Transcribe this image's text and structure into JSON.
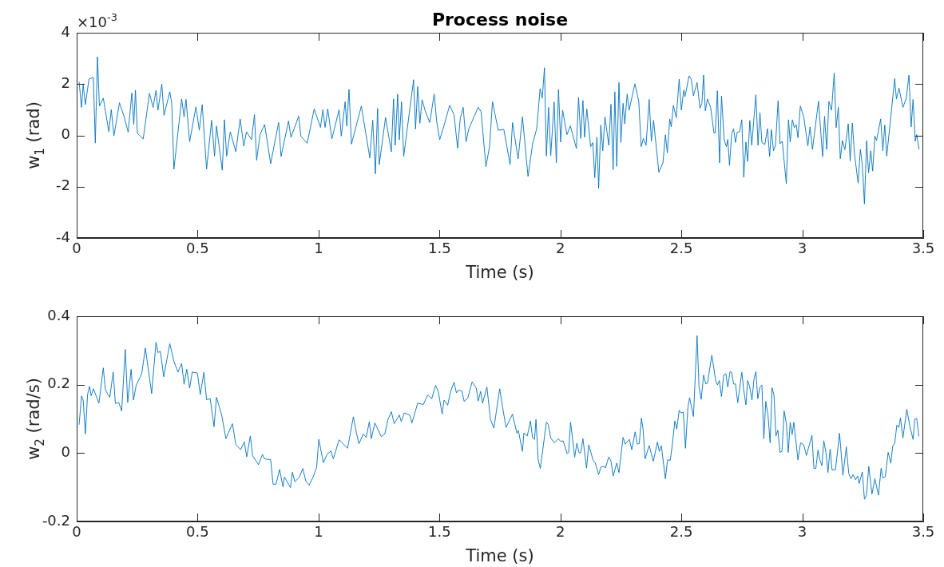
{
  "chart_data": [
    {
      "type": "line",
      "title": "Process noise",
      "xlabel": "Time (s)",
      "ylabel": "w$_{1}$ (rad)",
      "annotations": [
        "×10$^{-3}$"
      ],
      "color": "#0072bd",
      "xlim": [
        0,
        3.5
      ],
      "xticks": [
        0,
        0.5,
        1,
        1.5,
        2,
        2.5,
        3,
        3.5
      ],
      "ylim": [
        -4,
        4
      ],
      "yticks": [
        -4,
        -2,
        0,
        2,
        4
      ],
      "x": [
        0.01,
        0.02,
        0.027,
        0.036,
        0.051,
        0.069,
        0.077,
        0.086,
        0.094,
        0.11,
        0.133,
        0.143,
        0.154,
        0.177,
        0.196,
        0.213,
        0.228,
        0.236,
        0.243,
        0.251,
        0.275,
        0.301,
        0.316,
        0.328,
        0.336,
        0.352,
        0.361,
        0.385,
        0.393,
        0.402,
        0.434,
        0.444,
        0.452,
        0.467,
        0.493,
        0.507,
        0.519,
        0.537,
        0.558,
        0.57,
        0.578,
        0.602,
        0.611,
        0.62,
        0.635,
        0.658,
        0.676,
        0.691,
        0.702,
        0.723,
        0.735,
        0.744,
        0.758,
        0.777,
        0.802,
        0.835,
        0.845,
        0.876,
        0.886,
        0.918,
        0.927,
        0.953,
        0.982,
        1.008,
        1.018,
        1.027,
        1.038,
        1.055,
        1.085,
        1.094,
        1.11,
        1.117,
        1.126,
        1.136,
        1.177,
        1.212,
        1.224,
        1.235,
        1.244,
        1.251,
        1.277,
        1.301,
        1.31,
        1.317,
        1.327,
        1.334,
        1.343,
        1.352,
        1.369,
        1.393,
        1.401,
        1.41,
        1.419,
        1.428,
        1.442,
        1.46,
        1.478,
        1.489,
        1.501,
        1.519,
        1.542,
        1.56,
        1.575,
        1.586,
        1.598,
        1.61,
        1.621,
        1.66,
        1.672,
        1.692,
        1.707,
        1.719,
        1.743,
        1.766,
        1.792,
        1.802,
        1.825,
        1.843,
        1.866,
        1.885,
        1.902,
        1.916,
        1.925,
        1.934,
        1.942,
        1.951,
        1.96,
        1.974,
        1.983,
        1.992,
        2.001,
        2.009,
        2.027,
        2.041,
        2.066,
        2.075,
        2.084,
        2.093,
        2.1,
        2.109,
        2.125,
        2.134,
        2.142,
        2.151,
        2.158,
        2.167,
        2.175,
        2.184,
        2.2,
        2.209,
        2.218,
        2.225,
        2.233,
        2.242,
        2.25,
        2.259,
        2.266,
        2.276,
        2.284,
        2.308,
        2.324,
        2.334,
        2.343,
        2.354,
        2.367,
        2.376,
        2.385,
        2.407,
        2.424,
        2.434,
        2.442,
        2.452,
        2.458,
        2.467,
        2.479,
        2.491,
        2.5,
        2.51,
        2.515,
        2.532,
        2.541,
        2.55,
        2.565,
        2.577,
        2.585,
        2.592,
        2.599,
        2.608,
        2.621,
        2.635,
        2.64,
        2.649,
        2.658,
        2.666,
        2.677,
        2.686,
        2.692,
        2.699,
        2.708,
        2.716,
        2.724,
        2.731,
        2.741,
        2.75,
        2.758,
        2.767,
        2.774,
        2.783,
        2.791,
        2.808,
        2.817,
        2.825,
        2.833,
        2.845,
        2.856,
        2.865,
        2.872,
        2.881,
        2.889,
        2.9,
        2.908,
        2.917,
        2.934,
        2.943,
        2.95,
        2.959,
        2.967,
        2.975,
        2.982,
        2.992,
        3.006,
        3.023,
        3.032,
        3.042,
        3.067,
        3.084,
        3.092,
        3.101,
        3.11,
        3.121,
        3.132,
        3.14,
        3.149,
        3.157,
        3.166,
        3.176,
        3.19,
        3.198,
        3.207,
        3.216,
        3.231,
        3.24,
        3.248,
        3.257,
        3.266,
        3.274,
        3.283,
        3.291,
        3.3,
        3.307,
        3.324,
        3.333,
        3.341,
        3.349,
        3.363,
        3.382,
        3.389,
        3.4,
        3.416,
        3.43,
        3.441,
        3.45,
        3.458,
        3.467,
        3.473,
        3.483
      ],
      "values": [
        2.09,
        1.09,
        1.98,
        1.2,
        2.2,
        2.26,
        -0.3,
        3.06,
        1.14,
        1.45,
        0.14,
        1.01,
        -0.02,
        1.27,
        0.73,
        0.12,
        1.65,
        0.42,
        1.76,
        0.08,
        -0.14,
        1.64,
        1.09,
        1.75,
        0.98,
        2.0,
        0.78,
        1.7,
        1.25,
        -1.32,
        1.42,
        0.72,
        1.4,
        -0.25,
        1.11,
        0.2,
        1.2,
        -1.32,
        0.59,
        -0.81,
        0.36,
        -1.36,
        0.61,
        -0.81,
        0.14,
        -0.64,
        0.64,
        -0.42,
        0.14,
        -0.17,
        0.81,
        -0.97,
        0.03,
        0.42,
        -1.1,
        0.5,
        -0.82,
        0.56,
        -0.08,
        0.75,
        -0.03,
        -0.31,
        1.03,
        0.31,
        1.0,
        0.31,
        1.03,
        -0.14,
        1.0,
        -0.03,
        1.31,
        0.36,
        1.79,
        -0.34,
        1.14,
        -0.88,
        0.59,
        -1.5,
        1.05,
        -1.14,
        0.7,
        -0.64,
        1.42,
        -0.39,
        1.61,
        -0.17,
        1.31,
        -0.82,
        0.42,
        2.17,
        0.25,
        1.9,
        0.47,
        1.39,
        0.92,
        0.5,
        1.61,
        0.5,
        -0.17,
        0.39,
        1.17,
        0.81,
        -0.5,
        0.66,
        1.09,
        -0.25,
        0.25,
        1.1,
        0.92,
        -1.22,
        -0.44,
        1.31,
        0.2,
        0.23,
        -1.14,
        0.5,
        -0.92,
        0.72,
        -1.6,
        -0.33,
        0.26,
        1.82,
        1.45,
        2.64,
        -0.81,
        1.09,
        -0.79,
        1.3,
        -1.07,
        1.79,
        -0.26,
        0.98,
        0.03,
        0.37,
        -0.51,
        1.48,
        -0.12,
        1.36,
        -0.07,
        1.03,
        -0.44,
        -0.28,
        -1.65,
        -0.07,
        -2.07,
        0.4,
        -0.6,
        0.72,
        -0.39,
        1.21,
        -1.33,
        1.7,
        -1.21,
        2.06,
        -0.28,
        1.25,
        0.45,
        1.61,
        0.98,
        2.01,
        1.32,
        -0.44,
        -0.12,
        -0.39,
        1.4,
        -0.23,
        0.58,
        -1.44,
        -1.07,
        0.02,
        -0.68,
        0.64,
        0.33,
        1.17,
        0.69,
        2.19,
        0.98,
        1.77,
        1.51,
        2.32,
        2.19,
        1.54,
        2.06,
        1.06,
        1.25,
        2.35,
        0.96,
        1.42,
        1.09,
        0.09,
        0.09,
        1.74,
        -1.07,
        1.53,
        -0.17,
        -0.44,
        -0.16,
        -1.17,
        0.06,
        0.25,
        -0.28,
        0.12,
        0.14,
        0.61,
        -1.63,
        -0.26,
        -1.02,
        0.58,
        -0.39,
        1.58,
        -0.39,
        0.88,
        -0.28,
        -0.36,
        0.26,
        -0.83,
        0.22,
        -0.6,
        -0.39,
        1.35,
        -0.33,
        -0.23,
        -1.88,
        0.61,
        -0.26,
        0.61,
        0.3,
        0.42,
        -0.09,
        1.14,
        0.72,
        -0.41,
        0.33,
        -0.55,
        1.33,
        -0.83,
        0.74,
        -0.55,
        1.32,
        0.98,
        2.43,
        0.3,
        1.09,
        -0.91,
        -0.2,
        -0.56,
        0.45,
        -1.0,
        0.48,
        -0.75,
        -1.86,
        -0.55,
        -1.12,
        -2.67,
        -0.21,
        -1.46,
        -0.6,
        -1.39,
        -0.02,
        -0.2,
        0.64,
        -0.6,
        0.4,
        -0.81,
        0.45,
        2.21,
        1.42,
        1.84,
        1.09,
        1.45,
        2.35,
        0.33,
        1.4,
        -0.23,
        0.03,
        -0.55
      ]
    },
    {
      "type": "line",
      "xlabel": "Time (s)",
      "ylabel": "w$_{2}$ (rad/s)",
      "color": "#0072bd",
      "xlim": [
        0,
        3.5
      ],
      "xticks": [
        0,
        0.5,
        1,
        1.5,
        2,
        2.5,
        3,
        3.5
      ],
      "ylim": [
        -0.2,
        0.4
      ],
      "yticks": [
        -0.2,
        0,
        0.2,
        0.4
      ],
      "x": [
        0.01,
        0.02,
        0.027,
        0.036,
        0.045,
        0.053,
        0.06,
        0.069,
        0.092,
        0.11,
        0.119,
        0.137,
        0.151,
        0.16,
        0.174,
        0.186,
        0.201,
        0.211,
        0.225,
        0.235,
        0.246,
        0.269,
        0.284,
        0.31,
        0.328,
        0.336,
        0.346,
        0.36,
        0.385,
        0.402,
        0.419,
        0.434,
        0.444,
        0.455,
        0.467,
        0.478,
        0.499,
        0.511,
        0.526,
        0.537,
        0.552,
        0.568,
        0.578,
        0.599,
        0.617,
        0.644,
        0.658,
        0.678,
        0.693,
        0.703,
        0.718,
        0.727,
        0.752,
        0.768,
        0.777,
        0.802,
        0.812,
        0.824,
        0.839,
        0.853,
        0.859,
        0.884,
        0.892,
        0.902,
        0.921,
        0.935,
        0.947,
        0.961,
        0.977,
        0.992,
        1.001,
        1.02,
        1.035,
        1.051,
        1.061,
        1.085,
        1.12,
        1.144,
        1.157,
        1.167,
        1.185,
        1.197,
        1.21,
        1.218,
        1.233,
        1.259,
        1.274,
        1.287,
        1.301,
        1.313,
        1.334,
        1.342,
        1.354,
        1.377,
        1.386,
        1.41,
        1.433,
        1.452,
        1.468,
        1.484,
        1.495,
        1.511,
        1.519,
        1.534,
        1.546,
        1.56,
        1.57,
        1.578,
        1.593,
        1.602,
        1.617,
        1.635,
        1.652,
        1.66,
        1.67,
        1.678,
        1.696,
        1.711,
        1.725,
        1.749,
        1.761,
        1.775,
        1.802,
        1.82,
        1.826,
        1.843,
        1.849,
        1.863,
        1.876,
        1.885,
        1.893,
        1.899,
        1.908,
        1.917,
        1.942,
        1.95,
        1.96,
        1.975,
        1.991,
        2.001,
        2.011,
        2.028,
        2.034,
        2.042,
        2.059,
        2.068,
        2.077,
        2.084,
        2.093,
        2.108,
        2.117,
        2.135,
        2.144,
        2.158,
        2.167,
        2.181,
        2.186,
        2.2,
        2.209,
        2.218,
        2.233,
        2.242,
        2.259,
        2.268,
        2.285,
        2.295,
        2.309,
        2.318,
        2.326,
        2.335,
        2.342,
        2.35,
        2.367,
        2.384,
        2.401,
        2.409,
        2.417,
        2.434,
        2.443,
        2.454,
        2.463,
        2.473,
        2.481,
        2.491,
        2.499,
        2.508,
        2.517,
        2.527,
        2.534,
        2.55,
        2.565,
        2.573,
        2.582,
        2.592,
        2.601,
        2.608,
        2.626,
        2.642,
        2.649,
        2.657,
        2.666,
        2.675,
        2.684,
        2.692,
        2.701,
        2.708,
        2.716,
        2.724,
        2.733,
        2.75,
        2.758,
        2.767,
        2.774,
        2.782,
        2.792,
        2.8,
        2.808,
        2.816,
        2.825,
        2.833,
        2.841,
        2.849,
        2.858,
        2.867,
        2.875,
        2.883,
        2.891,
        2.899,
        2.908,
        2.916,
        2.925,
        2.934,
        2.942,
        2.95,
        2.958,
        2.965,
        2.982,
        2.993,
        3.006,
        3.017,
        3.031,
        3.04,
        3.048,
        3.056,
        3.065,
        3.073,
        3.081,
        3.089,
        3.098,
        3.106,
        3.115,
        3.123,
        3.137,
        3.154,
        3.168,
        3.182,
        3.192,
        3.201,
        3.21,
        3.22,
        3.229,
        3.235,
        3.248,
        3.257,
        3.265,
        3.275,
        3.288,
        3.3,
        3.315,
        3.326,
        3.333,
        3.343,
        3.355,
        3.366,
        3.374,
        3.382,
        3.391,
        3.399,
        3.406,
        3.416,
        3.432,
        3.445,
        3.458,
        3.465,
        3.473,
        3.482
      ],
      "values": [
        0.083,
        0.167,
        0.155,
        0.056,
        0.171,
        0.195,
        0.167,
        0.188,
        0.146,
        0.249,
        0.184,
        0.163,
        0.237,
        0.145,
        0.148,
        0.123,
        0.303,
        0.148,
        0.245,
        0.155,
        0.198,
        0.232,
        0.307,
        0.174,
        0.324,
        0.294,
        0.297,
        0.223,
        0.32,
        0.268,
        0.237,
        0.262,
        0.201,
        0.245,
        0.19,
        0.237,
        0.234,
        0.171,
        0.236,
        0.156,
        0.159,
        0.077,
        0.163,
        0.113,
        0.042,
        0.086,
        0.025,
        0.01,
        0.033,
        -0.011,
        0.05,
        -0.007,
        -0.034,
        -0.004,
        -0.017,
        -0.019,
        -0.091,
        -0.091,
        -0.048,
        -0.099,
        -0.07,
        -0.101,
        -0.056,
        -0.084,
        -0.07,
        -0.045,
        -0.081,
        -0.094,
        -0.071,
        -0.042,
        0.04,
        -0.028,
        -0.004,
        0.006,
        -0.017,
        0.039,
        0.014,
        0.106,
        0.058,
        0.027,
        0.056,
        0.046,
        0.092,
        0.042,
        0.088,
        0.048,
        0.056,
        0.098,
        0.121,
        0.086,
        0.111,
        0.092,
        0.117,
        0.111,
        0.088,
        0.146,
        0.142,
        0.17,
        0.159,
        0.198,
        0.18,
        0.114,
        0.155,
        0.14,
        0.18,
        0.207,
        0.176,
        0.184,
        0.181,
        0.151,
        0.161,
        0.208,
        0.19,
        0.152,
        0.18,
        0.146,
        0.193,
        0.098,
        0.073,
        0.188,
        0.134,
        0.075,
        0.114,
        0.058,
        0.066,
        0.005,
        0.059,
        0.05,
        0.094,
        0.044,
        0.04,
        0.098,
        -0.02,
        -0.045,
        0.091,
        0.083,
        0.044,
        0.03,
        0.042,
        0.034,
        0.036,
        -0.002,
        0.002,
        0.09,
        -0.012,
        0.029,
        0.001,
        0.001,
        0.042,
        -0.044,
        0.024,
        -0.021,
        -0.029,
        -0.063,
        -0.041,
        -0.039,
        -0.044,
        -0.011,
        -0.023,
        -0.067,
        -0.029,
        -0.057,
        0.046,
        0.026,
        0.04,
        0.01,
        0.062,
        0.026,
        0.028,
        0.102,
        0.068,
        -0.017,
        0.022,
        -0.024,
        0.032,
        0.005,
        0.022,
        -0.075,
        -0.02,
        -0.021,
        0.026,
        0.094,
        0.07,
        0.125,
        0.117,
        0.12,
        0.014,
        0.133,
        0.162,
        0.107,
        0.343,
        0.193,
        0.157,
        0.228,
        0.202,
        0.204,
        0.286,
        0.212,
        0.199,
        0.212,
        0.165,
        0.228,
        0.232,
        0.193,
        0.238,
        0.236,
        0.202,
        0.202,
        0.147,
        0.236,
        0.183,
        0.141,
        0.212,
        0.196,
        0.155,
        0.215,
        0.238,
        0.159,
        0.193,
        0.199,
        0.042,
        0.151,
        0.113,
        0.03,
        0.191,
        0.169,
        0.05,
        0.067,
        0.002,
        0.005,
        0.123,
        0.086,
        0.002,
        0.09,
        0.054,
        0.09,
        -0.02,
        0.03,
        0.024,
        -0.007,
        0.029,
        0.052,
        -0.045,
        -0.045,
        0.009,
        -0.021,
        -0.037,
        0.036,
        0.001,
        -0.057,
        0.012,
        -0.049,
        -0.049,
        0.058,
        -0.065,
        0.018,
        -0.059,
        -0.075,
        -0.063,
        -0.078,
        -0.067,
        -0.089,
        -0.055,
        -0.135,
        -0.124,
        -0.039,
        -0.12,
        -0.075,
        -0.123,
        -0.044,
        -0.073,
        -0.069,
        0.002,
        -0.029,
        0.021,
        0.028,
        0.082,
        0.075,
        0.103,
        0.044,
        0.128,
        0.078,
        0.04,
        0.099,
        0.101,
        0.049
      ]
    }
  ]
}
